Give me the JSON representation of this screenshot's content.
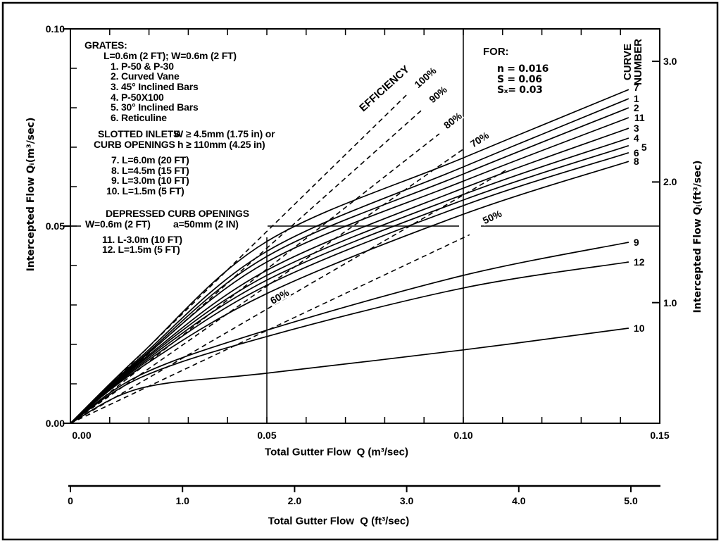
{
  "figure": {
    "background": "#ffffff",
    "ink": "#000000"
  },
  "chart_data": {
    "type": "line",
    "title": "",
    "x_axis_m": {
      "title": "Total Gutter Flow  Q (m³/sec)",
      "tick_labels": [
        "0.00",
        "0.05",
        "0.10",
        "0.15"
      ],
      "tick_values": [
        0,
        0.05,
        0.1,
        0.15
      ],
      "range": [
        0,
        0.15
      ],
      "minor_step": 0.01
    },
    "x_axis_ft": {
      "title": "Total Gutter Flow  Q (ft³/sec)",
      "tick_labels": [
        "0",
        "1.0",
        "2.0",
        "3.0",
        "4.0",
        "5.0"
      ],
      "tick_values": [
        0,
        1,
        2,
        3,
        4,
        5
      ]
    },
    "y_axis_m": {
      "title": "Intercepted Flow  Qᵢ(m³/sec)",
      "tick_labels": [
        "0.00",
        "0.05",
        "0.10"
      ],
      "tick_values": [
        0,
        0.05,
        0.1
      ],
      "range": [
        0,
        0.1
      ],
      "minor_step": 0.01
    },
    "y_axis_ft": {
      "title": "Intercepted Flow  Qᵢ(ft³/sec)",
      "tick_labels": [
        "1.0",
        "2.0",
        "3.0"
      ],
      "tick_values": [
        1,
        2,
        3
      ]
    },
    "gridlines": {
      "vertical_q": [
        0.05,
        0.1
      ],
      "horizontal_qi": [
        0.05
      ]
    },
    "efficiency_heading": "EFFICIENCY",
    "efficiency_lines": [
      {
        "label": "100%",
        "end": [
          0.0855,
          0.0832
        ]
      },
      {
        "label": "90%",
        "end": [
          0.0893,
          0.0793
        ]
      },
      {
        "label": "80%",
        "end": [
          0.0939,
          0.0734
        ]
      },
      {
        "label": "70%",
        "end": [
          0.1,
          0.0695
        ]
      },
      {
        "label": "60%",
        "end": [
          0.1111,
          0.0643
        ]
      },
      {
        "label": "50%",
        "end": [
          0.1016,
          0.0478
        ]
      }
    ],
    "curve_number_heading": "CURVE NUMBER",
    "curves": [
      {
        "number": "7",
        "points": [
          [
            0,
            0
          ],
          [
            0.0179,
            0.0175
          ],
          [
            0.05,
            0.0461
          ],
          [
            0.1,
            0.0673
          ],
          [
            0.1421,
            0.0846
          ]
        ]
      },
      {
        "number": "1",
        "points": [
          [
            0,
            0
          ],
          [
            0.0179,
            0.0168
          ],
          [
            0.05,
            0.0436
          ],
          [
            0.1,
            0.065
          ],
          [
            0.1421,
            0.0823
          ]
        ]
      },
      {
        "number": "2",
        "points": [
          [
            0,
            0
          ],
          [
            0.0179,
            0.0164
          ],
          [
            0.05,
            0.0423
          ],
          [
            0.1,
            0.0632
          ],
          [
            0.1421,
            0.08
          ]
        ]
      },
      {
        "number": "11",
        "points": [
          [
            0,
            0
          ],
          [
            0.0179,
            0.0161
          ],
          [
            0.05,
            0.0409
          ],
          [
            0.1,
            0.0614
          ],
          [
            0.1421,
            0.0775
          ]
        ]
      },
      {
        "number": "3",
        "points": [
          [
            0,
            0
          ],
          [
            0.0179,
            0.0157
          ],
          [
            0.05,
            0.0388
          ],
          [
            0.1,
            0.0596
          ],
          [
            0.1421,
            0.0748
          ]
        ]
      },
      {
        "number": "4",
        "points": [
          [
            0,
            0
          ],
          [
            0.0179,
            0.0154
          ],
          [
            0.05,
            0.0375
          ],
          [
            0.1,
            0.058
          ],
          [
            0.1421,
            0.0723
          ]
        ]
      },
      {
        "number": "5",
        "points": [
          [
            0,
            0
          ],
          [
            0.0179,
            0.015
          ],
          [
            0.05,
            0.0363
          ],
          [
            0.1,
            0.0566
          ],
          [
            0.1421,
            0.0704
          ]
        ]
      },
      {
        "number": "6",
        "points": [
          [
            0,
            0
          ],
          [
            0.0179,
            0.0146
          ],
          [
            0.05,
            0.035
          ],
          [
            0.1,
            0.0552
          ],
          [
            0.1421,
            0.0686
          ]
        ]
      },
      {
        "number": "8",
        "points": [
          [
            0,
            0
          ],
          [
            0.0179,
            0.0141
          ],
          [
            0.05,
            0.0329
          ],
          [
            0.1,
            0.053
          ],
          [
            0.1421,
            0.0664
          ]
        ]
      },
      {
        "number": "9",
        "points": [
          [
            0,
            0
          ],
          [
            0.0179,
            0.0123
          ],
          [
            0.05,
            0.0236
          ],
          [
            0.1,
            0.0375
          ],
          [
            0.1421,
            0.0459
          ]
        ]
      },
      {
        "number": "12",
        "points": [
          [
            0,
            0
          ],
          [
            0.0179,
            0.0116
          ],
          [
            0.05,
            0.022
          ],
          [
            0.1,
            0.0343
          ],
          [
            0.1421,
            0.0409
          ]
        ]
      },
      {
        "number": "10",
        "points": [
          [
            0,
            0
          ],
          [
            0.0179,
            0.0089
          ],
          [
            0.05,
            0.0127
          ],
          [
            0.1,
            0.0186
          ],
          [
            0.1421,
            0.0241
          ]
        ]
      }
    ],
    "conditions": {
      "label": "FOR:",
      "items": [
        "n = 0.016",
        "S = 0.06",
        "Sₓ= 0.03"
      ]
    },
    "legend": {
      "grates_header": "GRATES:",
      "grates_sub": "L=0.6m (2 FT); W=0.6m (2 FT)",
      "grates_items": [
        "1. P-50 & P-30",
        "2. Curved Vane",
        "3. 45° Inclined Bars",
        "4. P-50X100",
        "5. 30° Inclined Bars",
        "6. Reticuline"
      ],
      "slotted_line1": {
        "a": "SLOTTED INLETS",
        "b": "W ≥ 4.5mm (1.75 in) or"
      },
      "slotted_line2": {
        "a": "CURB OPENINGS",
        "b": "h ≥ 110mm (4.25 in)"
      },
      "slotted_items": [
        "7. L=6.0m (20 FT)",
        "8. L=4.5m (15 FT)",
        "9. L=3.0m (10 FT)",
        "10. L=1.5m (5 FT)"
      ],
      "depressed_header": "DEPRESSED CURB OPENINGS",
      "depressed_line": {
        "a": "W=0.6m (2 FT)",
        "b": "a=50mm (2 IN)"
      },
      "depressed_items": [
        "11. L-3.0m (10 FT)",
        "12. L=1.5m (5 FT)"
      ]
    }
  }
}
